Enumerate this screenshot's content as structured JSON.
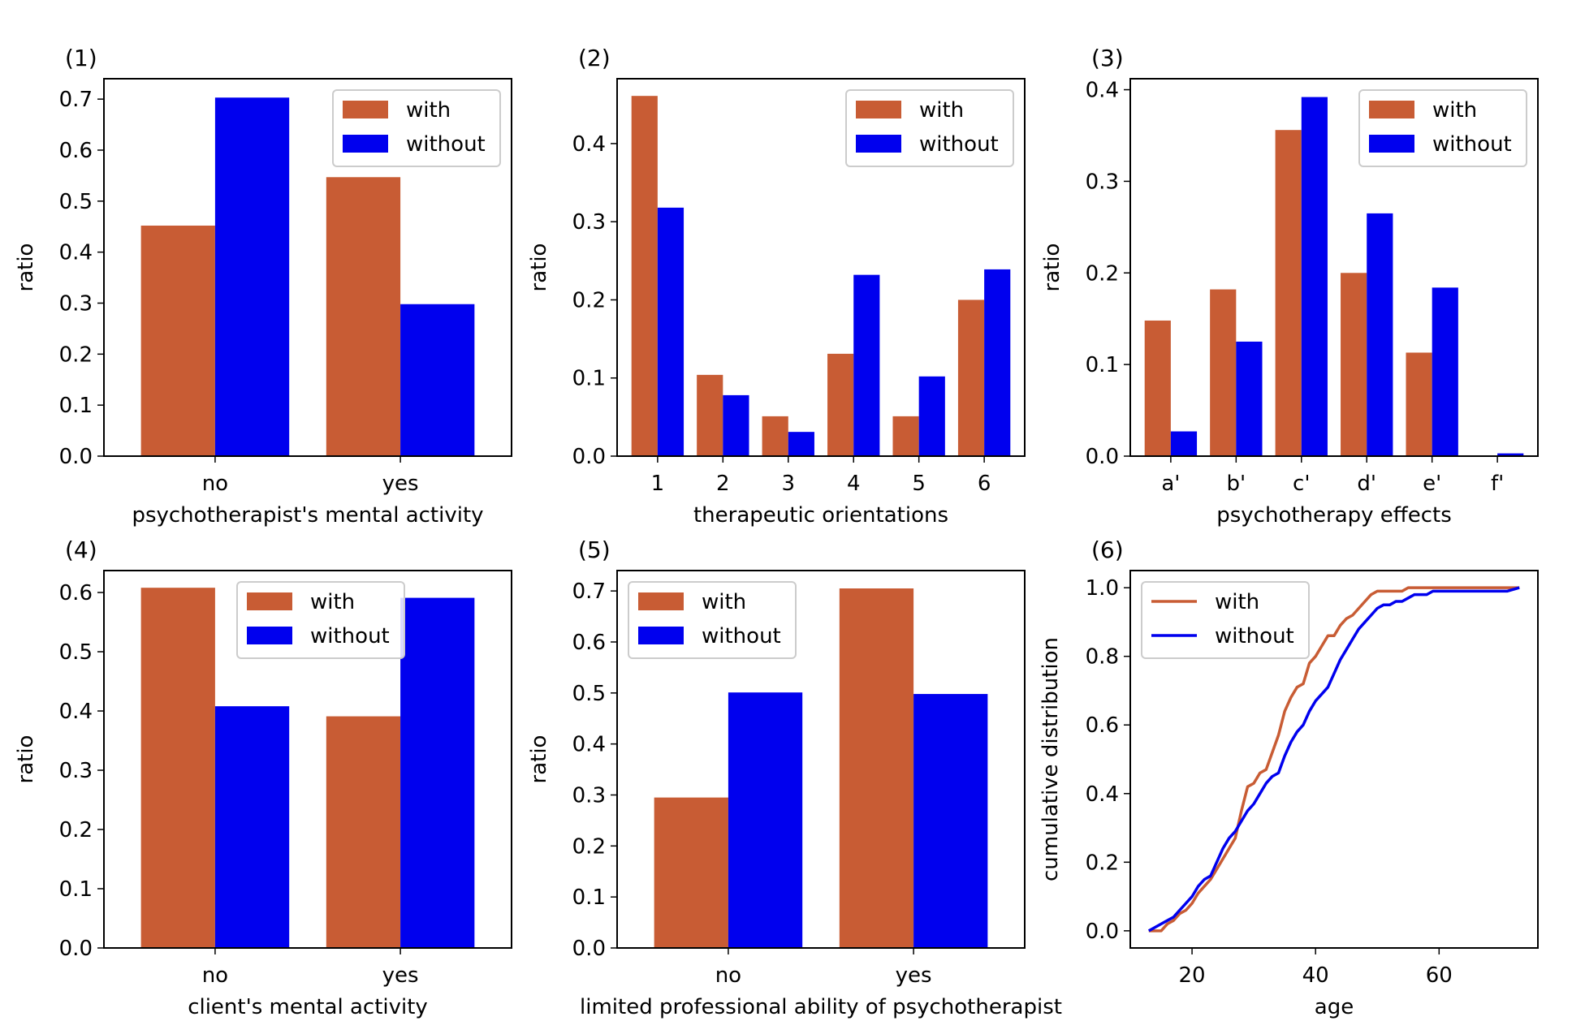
{
  "colors": {
    "with": "#c85c34",
    "without": "#0000ee"
  },
  "chart_data": [
    {
      "id": "1",
      "type": "bar",
      "panel_label": "(1)",
      "xlabel": "psychotherapist's mental activity",
      "ylabel": "ratio",
      "categories": [
        "no",
        "yes"
      ],
      "yticks": [
        "0.0",
        "0.1",
        "0.2",
        "0.3",
        "0.4",
        "0.5",
        "0.6",
        "0.7"
      ],
      "ylim": [
        0,
        0.74
      ],
      "legend_position": "top-right",
      "series": [
        {
          "name": "with",
          "values": [
            0.452,
            0.547
          ]
        },
        {
          "name": "without",
          "values": [
            0.703,
            0.298
          ]
        }
      ]
    },
    {
      "id": "2",
      "type": "bar",
      "panel_label": "(2)",
      "xlabel": "therapeutic orientations",
      "ylabel": "ratio",
      "categories": [
        "1",
        "2",
        "3",
        "4",
        "5",
        "6"
      ],
      "yticks": [
        "0.0",
        "0.1",
        "0.2",
        "0.3",
        "0.4"
      ],
      "ylim": [
        0,
        0.483
      ],
      "legend_position": "top-right",
      "series": [
        {
          "name": "with",
          "values": [
            0.461,
            0.104,
            0.051,
            0.131,
            0.051,
            0.2
          ]
        },
        {
          "name": "without",
          "values": [
            0.318,
            0.078,
            0.031,
            0.232,
            0.102,
            0.239
          ]
        }
      ]
    },
    {
      "id": "3",
      "type": "bar",
      "panel_label": "(3)",
      "xlabel": "psychotherapy effects",
      "ylabel": "ratio",
      "categories": [
        "a'",
        "b'",
        "c'",
        "d'",
        "e'",
        "f'"
      ],
      "yticks": [
        "0.0",
        "0.1",
        "0.2",
        "0.3",
        "0.4"
      ],
      "ylim": [
        0,
        0.412
      ],
      "legend_position": "top-right",
      "series": [
        {
          "name": "with",
          "values": [
            0.148,
            0.182,
            0.356,
            0.2,
            0.113,
            0.0
          ]
        },
        {
          "name": "without",
          "values": [
            0.027,
            0.125,
            0.392,
            0.265,
            0.184,
            0.003
          ]
        }
      ]
    },
    {
      "id": "4",
      "type": "bar",
      "panel_label": "(4)",
      "xlabel": "client's  mental activity",
      "ylabel": "ratio",
      "categories": [
        "no",
        "yes"
      ],
      "yticks": [
        "0.0",
        "0.1",
        "0.2",
        "0.3",
        "0.4",
        "0.5",
        "0.6"
      ],
      "ylim": [
        0,
        0.637
      ],
      "legend_position": "top-center",
      "series": [
        {
          "name": "with",
          "values": [
            0.608,
            0.391
          ]
        },
        {
          "name": "without",
          "values": [
            0.408,
            0.591
          ]
        }
      ]
    },
    {
      "id": "5",
      "type": "bar",
      "panel_label": "(5)",
      "xlabel": "limited professional ability of psychotherapist",
      "ylabel": "ratio",
      "categories": [
        "no",
        "yes"
      ],
      "yticks": [
        "0.0",
        "0.1",
        "0.2",
        "0.3",
        "0.4",
        "0.5",
        "0.6",
        "0.7"
      ],
      "ylim": [
        0,
        0.74
      ],
      "legend_position": "top-left",
      "series": [
        {
          "name": "with",
          "values": [
            0.295,
            0.705
          ]
        },
        {
          "name": "without",
          "values": [
            0.501,
            0.498
          ]
        }
      ]
    },
    {
      "id": "6",
      "type": "line",
      "panel_label": "(6)",
      "xlabel": "age",
      "ylabel": "cumulative distribution",
      "xticks": [
        "20",
        "40",
        "60"
      ],
      "yticks": [
        "0.0",
        "0.2",
        "0.4",
        "0.6",
        "0.8",
        "1.0"
      ],
      "xlim": [
        10,
        76
      ],
      "ylim": [
        -0.05,
        1.05
      ],
      "legend_position": "top-left",
      "series": [
        {
          "name": "with",
          "x": [
            13,
            14,
            15,
            16,
            17,
            18,
            19,
            20,
            21,
            22,
            23,
            24,
            25,
            26,
            27,
            28,
            29,
            30,
            31,
            32,
            33,
            34,
            35,
            36,
            37,
            38,
            39,
            40,
            41,
            42,
            43,
            44,
            45,
            46,
            47,
            48,
            49,
            50,
            51,
            52,
            53,
            54,
            55,
            56,
            58,
            60,
            62,
            65,
            68,
            71,
            73
          ],
          "y": [
            0.0,
            0.0,
            0.0,
            0.02,
            0.03,
            0.05,
            0.06,
            0.08,
            0.11,
            0.13,
            0.15,
            0.18,
            0.21,
            0.24,
            0.27,
            0.35,
            0.42,
            0.43,
            0.46,
            0.47,
            0.52,
            0.57,
            0.64,
            0.68,
            0.71,
            0.72,
            0.78,
            0.8,
            0.83,
            0.86,
            0.86,
            0.89,
            0.91,
            0.92,
            0.94,
            0.96,
            0.98,
            0.99,
            0.99,
            0.99,
            0.99,
            0.99,
            1.0,
            1.0,
            1.0,
            1.0,
            1.0,
            1.0,
            1.0,
            1.0,
            1.0
          ]
        },
        {
          "name": "without",
          "x": [
            13,
            14,
            15,
            16,
            17,
            18,
            19,
            20,
            21,
            22,
            23,
            24,
            25,
            26,
            27,
            28,
            29,
            30,
            31,
            32,
            33,
            34,
            35,
            36,
            37,
            38,
            39,
            40,
            41,
            42,
            43,
            44,
            45,
            46,
            47,
            48,
            49,
            50,
            51,
            52,
            53,
            54,
            55,
            56,
            57,
            58,
            59,
            60,
            62,
            65,
            68,
            71,
            73
          ],
          "y": [
            0.0,
            0.01,
            0.02,
            0.03,
            0.04,
            0.06,
            0.08,
            0.1,
            0.13,
            0.15,
            0.16,
            0.2,
            0.24,
            0.27,
            0.29,
            0.32,
            0.35,
            0.37,
            0.4,
            0.43,
            0.45,
            0.46,
            0.51,
            0.55,
            0.58,
            0.6,
            0.64,
            0.67,
            0.69,
            0.71,
            0.75,
            0.79,
            0.82,
            0.85,
            0.88,
            0.9,
            0.92,
            0.94,
            0.95,
            0.95,
            0.96,
            0.96,
            0.97,
            0.98,
            0.98,
            0.98,
            0.99,
            0.99,
            0.99,
            0.99,
            0.99,
            0.99,
            1.0
          ]
        }
      ]
    }
  ]
}
